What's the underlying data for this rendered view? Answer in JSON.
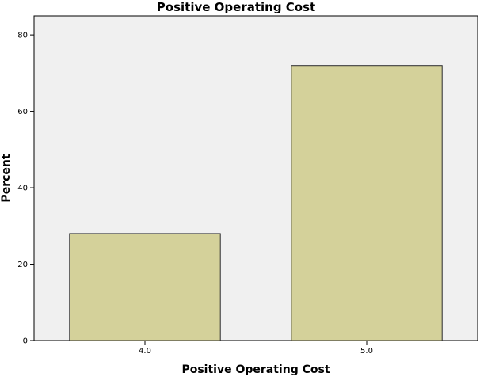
{
  "chart_data": {
    "type": "bar",
    "title": "Positive Operating Cost",
    "xlabel": "Positive Operating Cost",
    "ylabel": "Percent",
    "categories": [
      "4.0",
      "5.0"
    ],
    "values": [
      28,
      72
    ],
    "ylim": [
      0,
      85
    ],
    "yticks": [
      "0",
      "20",
      "40",
      "60",
      "80"
    ],
    "grid": false,
    "colors": {
      "plot_background": "#f0f0f0",
      "bar_fill": "#d4d19a",
      "bar_stroke": "#2b2b2b"
    }
  }
}
